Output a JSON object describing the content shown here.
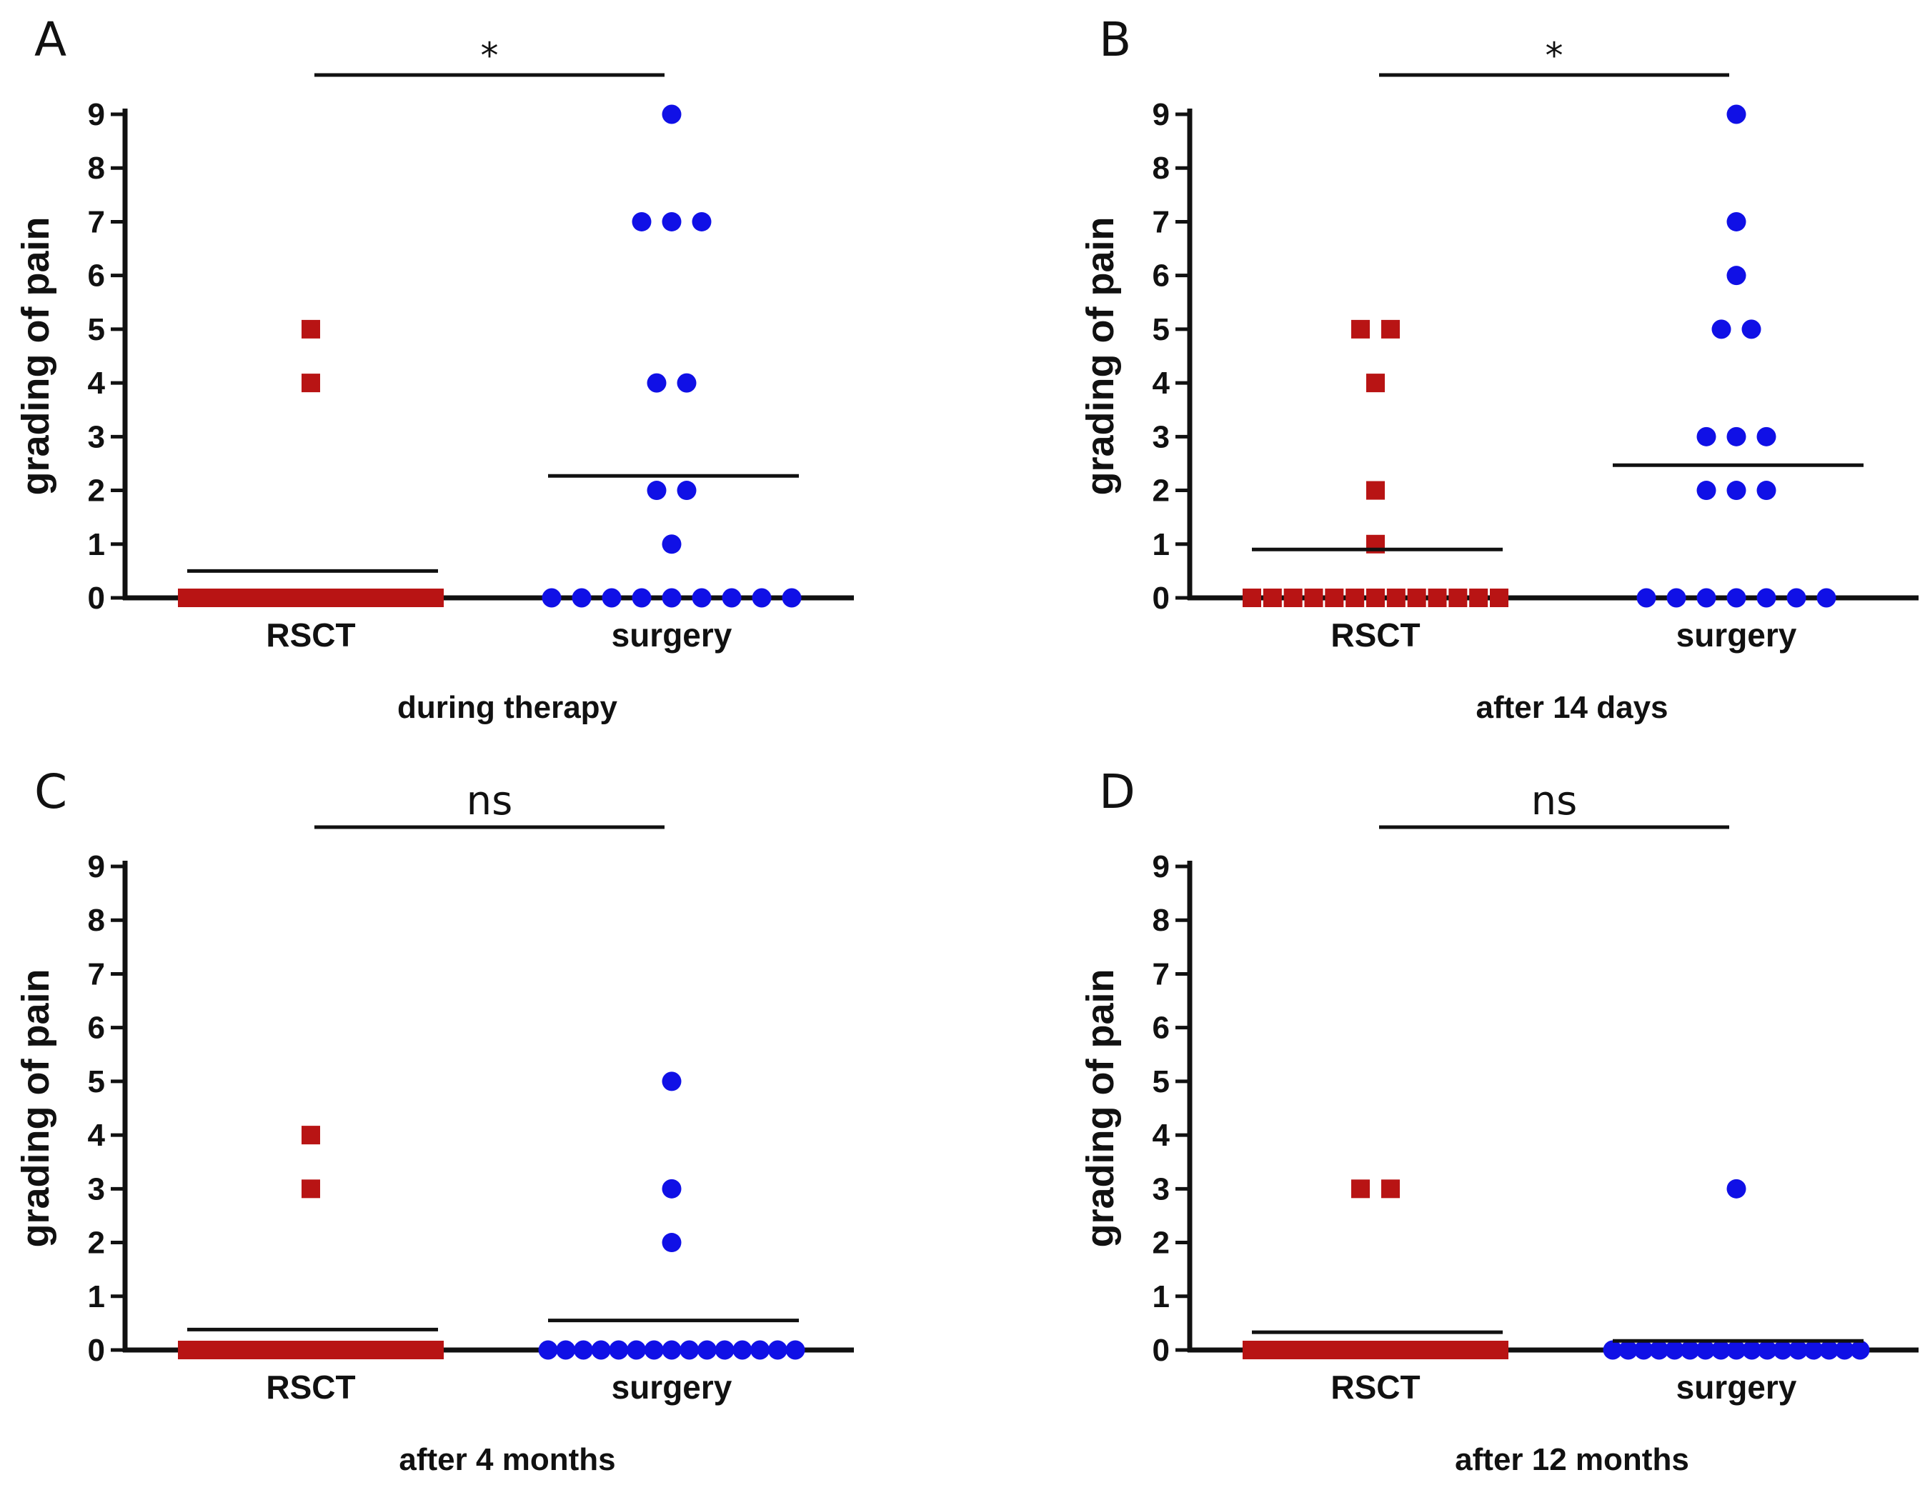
{
  "chart_data": [
    {
      "type": "scatter",
      "panel": "A",
      "xlabel": "during therapy",
      "ylabel": "grading of pain",
      "ylim": [
        0,
        9
      ],
      "yticks": [
        "0",
        "1",
        "2",
        "3",
        "4",
        "5",
        "6",
        "7",
        "8",
        "9"
      ],
      "categories": [
        "RSCT",
        "surgery"
      ],
      "significance": "*",
      "series": [
        {
          "name": "RSCT",
          "color": "#b81414",
          "marker": "square",
          "values": [
            5,
            4,
            0,
            0,
            0,
            0,
            0,
            0,
            0,
            0,
            0,
            0,
            0,
            0,
            0,
            0,
            0,
            0
          ],
          "mean": 0.5
        },
        {
          "name": "surgery",
          "color": "#1010e6",
          "marker": "circle",
          "values": [
            9,
            7,
            7,
            7,
            4,
            4,
            2,
            2,
            1,
            0,
            0,
            0,
            0,
            0,
            0,
            0,
            0,
            0
          ],
          "mean": 2.27
        }
      ]
    },
    {
      "type": "scatter",
      "panel": "B",
      "xlabel": "after 14 days",
      "ylabel": "grading of pain",
      "ylim": [
        0,
        9
      ],
      "yticks": [
        "0",
        "1",
        "2",
        "3",
        "4",
        "5",
        "6",
        "7",
        "8",
        "9"
      ],
      "categories": [
        "RSCT",
        "surgery"
      ],
      "significance": "*",
      "series": [
        {
          "name": "RSCT",
          "color": "#b81414",
          "marker": "square",
          "values": [
            5,
            5,
            4,
            2,
            1,
            0,
            0,
            0,
            0,
            0,
            0,
            0,
            0,
            0,
            0,
            0,
            0,
            0
          ],
          "mean": 0.9
        },
        {
          "name": "surgery",
          "color": "#1010e6",
          "marker": "circle",
          "values": [
            9,
            7,
            6,
            5,
            5,
            3,
            3,
            3,
            2,
            2,
            2,
            0,
            0,
            0,
            0,
            0,
            0,
            0
          ],
          "mean": 2.47
        }
      ]
    },
    {
      "type": "scatter",
      "panel": "C",
      "xlabel": "after 4 months",
      "ylabel": "grading of pain",
      "ylim": [
        0,
        9
      ],
      "yticks": [
        "0",
        "1",
        "2",
        "3",
        "4",
        "5",
        "6",
        "7",
        "8",
        "9"
      ],
      "categories": [
        "RSCT",
        "surgery"
      ],
      "significance": "ns",
      "series": [
        {
          "name": "RSCT",
          "color": "#b81414",
          "marker": "square",
          "values": [
            4,
            3,
            0,
            0,
            0,
            0,
            0,
            0,
            0,
            0,
            0,
            0,
            0,
            0,
            0,
            0,
            0,
            0
          ],
          "mean": 0.38
        },
        {
          "name": "surgery",
          "color": "#1010e6",
          "marker": "circle",
          "values": [
            5,
            3,
            2,
            0,
            0,
            0,
            0,
            0,
            0,
            0,
            0,
            0,
            0,
            0,
            0,
            0,
            0,
            0
          ],
          "mean": 0.55
        }
      ]
    },
    {
      "type": "scatter",
      "panel": "D",
      "xlabel": "after 12 months",
      "ylabel": "grading of pain",
      "ylim": [
        0,
        9
      ],
      "yticks": [
        "0",
        "1",
        "2",
        "3",
        "4",
        "5",
        "6",
        "7",
        "8",
        "9"
      ],
      "categories": [
        "RSCT",
        "surgery"
      ],
      "significance": "ns",
      "series": [
        {
          "name": "RSCT",
          "color": "#b81414",
          "marker": "square",
          "values": [
            3,
            3,
            0,
            0,
            0,
            0,
            0,
            0,
            0,
            0,
            0,
            0,
            0,
            0,
            0,
            0,
            0,
            0
          ],
          "mean": 0.33
        },
        {
          "name": "surgery",
          "color": "#1010e6",
          "marker": "circle",
          "values": [
            3,
            0,
            0,
            0,
            0,
            0,
            0,
            0,
            0,
            0,
            0,
            0,
            0,
            0,
            0,
            0,
            0,
            0
          ],
          "mean": 0.17
        }
      ]
    }
  ]
}
